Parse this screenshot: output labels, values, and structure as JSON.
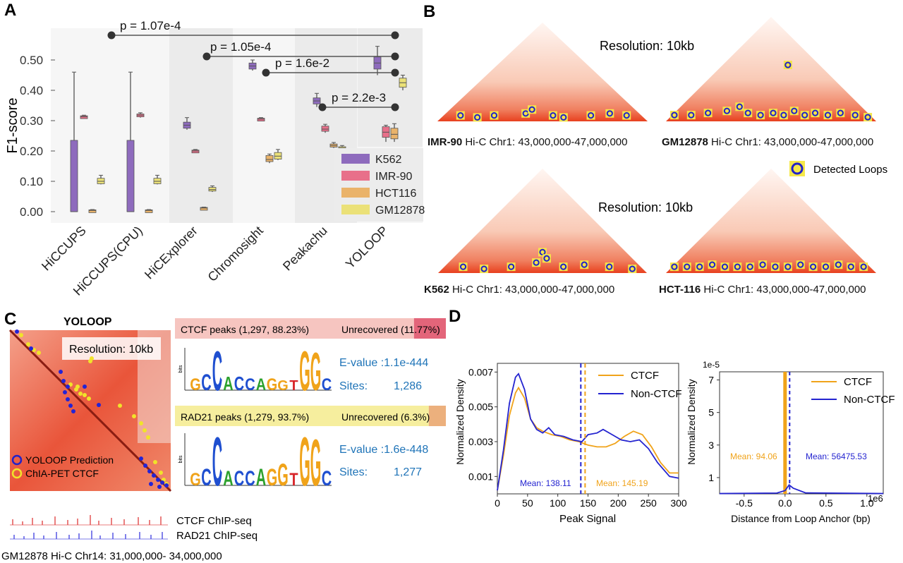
{
  "panels": {
    "a": "A",
    "b": "B",
    "c": "C",
    "d": "D"
  },
  "panel_a": {
    "ylabel": "F1-score",
    "yticks": [
      "0.00",
      "0.10",
      "0.20",
      "0.30",
      "0.40",
      "0.50"
    ],
    "tools": [
      "HiCCUPS",
      "HiCCUPS(CPU)",
      "HiCExplorer",
      "Chromosight",
      "Peakachu",
      "YOLOOP"
    ],
    "pvalues": [
      "p = 1.07e-4",
      "p = 1.05e-4",
      "p = 1.6e-2",
      "p = 2.2e-3"
    ],
    "legend": [
      "K562",
      "IMR-90",
      "HCT116",
      "GM12878"
    ],
    "colors": {
      "K562": "#8e6bbd",
      "IMR-90": "#e8708a",
      "HCT116": "#eab36a",
      "GM12878": "#ebe178"
    }
  },
  "chart_data": {
    "type": "box",
    "title": "",
    "xlabel": "",
    "ylabel": "F1-score",
    "ylim": [
      0,
      0.55
    ],
    "categories": [
      "HiCCUPS",
      "HiCCUPS(CPU)",
      "HiCExplorer",
      "Chromosight",
      "Peakachu",
      "YOLOOP"
    ],
    "series": [
      {
        "name": "K562",
        "boxes": [
          {
            "min": 0.0,
            "q1": 0.0,
            "median": 0.0,
            "q3": 0.235,
            "max": 0.46
          },
          {
            "min": 0.0,
            "q1": 0.0,
            "median": 0.0,
            "q3": 0.235,
            "max": 0.46
          },
          {
            "min": 0.27,
            "q1": 0.275,
            "median": 0.285,
            "q3": 0.295,
            "max": 0.31
          },
          {
            "min": 0.465,
            "q1": 0.47,
            "median": 0.48,
            "q3": 0.49,
            "max": 0.5
          },
          {
            "min": 0.345,
            "q1": 0.355,
            "median": 0.365,
            "q3": 0.375,
            "max": 0.39
          },
          {
            "min": 0.45,
            "q1": 0.47,
            "median": 0.49,
            "q3": 0.51,
            "max": 0.545
          }
        ]
      },
      {
        "name": "IMR-90",
        "boxes": [
          {
            "min": 0.31,
            "q1": 0.311,
            "median": 0.313,
            "q3": 0.316,
            "max": 0.318
          },
          {
            "min": 0.31,
            "q1": 0.313,
            "median": 0.318,
            "q3": 0.322,
            "max": 0.326
          },
          {
            "min": 0.197,
            "q1": 0.198,
            "median": 0.2,
            "q3": 0.203,
            "max": 0.205
          },
          {
            "min": 0.3,
            "q1": 0.302,
            "median": 0.305,
            "q3": 0.308,
            "max": 0.31
          },
          {
            "min": 0.26,
            "q1": 0.265,
            "median": 0.272,
            "q3": 0.282,
            "max": 0.288
          },
          {
            "min": 0.23,
            "q1": 0.245,
            "median": 0.262,
            "q3": 0.28,
            "max": 0.285
          }
        ]
      },
      {
        "name": "HCT116",
        "boxes": [
          {
            "min": 0.002,
            "q1": 0.003,
            "median": 0.004,
            "q3": 0.006,
            "max": 0.007
          },
          {
            "min": 0.002,
            "q1": 0.003,
            "median": 0.004,
            "q3": 0.006,
            "max": 0.007
          },
          {
            "min": 0.01,
            "q1": 0.011,
            "median": 0.012,
            "q3": 0.014,
            "max": 0.015
          },
          {
            "min": 0.16,
            "q1": 0.165,
            "median": 0.172,
            "q3": 0.185,
            "max": 0.19
          },
          {
            "min": 0.21,
            "q1": 0.213,
            "median": 0.218,
            "q3": 0.223,
            "max": 0.228
          },
          {
            "min": 0.23,
            "q1": 0.24,
            "median": 0.255,
            "q3": 0.275,
            "max": 0.29
          }
        ]
      },
      {
        "name": "GM12878",
        "boxes": [
          {
            "min": 0.09,
            "q1": 0.092,
            "median": 0.1,
            "q3": 0.11,
            "max": 0.12
          },
          {
            "min": 0.09,
            "q1": 0.092,
            "median": 0.1,
            "q3": 0.11,
            "max": 0.12
          },
          {
            "min": 0.065,
            "q1": 0.068,
            "median": 0.073,
            "q3": 0.08,
            "max": 0.085
          },
          {
            "min": 0.17,
            "q1": 0.173,
            "median": 0.183,
            "q3": 0.195,
            "max": 0.205
          },
          {
            "min": 0.202,
            "q1": 0.205,
            "median": 0.21,
            "q3": 0.214,
            "max": 0.218
          },
          {
            "min": 0.4,
            "q1": 0.41,
            "median": 0.425,
            "q3": 0.44,
            "max": 0.45
          }
        ]
      }
    ],
    "comparisons": [
      {
        "from": "HiCCUPS",
        "to": "YOLOOP",
        "label": "p = 1.07e-4"
      },
      {
        "from": "HiCExplorer",
        "to": "YOLOOP",
        "label": "p = 1.05e-4"
      },
      {
        "from": "Chromosight",
        "to": "YOLOOP",
        "label": "p = 1.6e-2"
      },
      {
        "from": "Peakachu",
        "to": "YOLOOP",
        "label": "p = 2.2e-3"
      }
    ]
  },
  "panel_b": {
    "resolution": "Resolution: 10kb",
    "legend_label": "Detected Loops",
    "coords": "Hi-C Chr1: 43,000,000-47,000,000",
    "maps": [
      {
        "cell": "IMR-90",
        "loops": [
          [
            0.11,
            0.03
          ],
          [
            0.19,
            0.02
          ],
          [
            0.27,
            0.03
          ],
          [
            0.42,
            0.04
          ],
          [
            0.45,
            0.06
          ],
          [
            0.55,
            0.03
          ],
          [
            0.6,
            0.02
          ],
          [
            0.73,
            0.03
          ],
          [
            0.82,
            0.04
          ],
          [
            0.9,
            0.03
          ]
        ]
      },
      {
        "cell": "GM12878",
        "loops": [
          [
            0.04,
            0.03
          ],
          [
            0.12,
            0.03
          ],
          [
            0.2,
            0.04
          ],
          [
            0.29,
            0.05
          ],
          [
            0.35,
            0.07
          ],
          [
            0.39,
            0.04
          ],
          [
            0.45,
            0.03
          ],
          [
            0.51,
            0.04
          ],
          [
            0.56,
            0.03
          ],
          [
            0.61,
            0.05
          ],
          [
            0.66,
            0.03
          ],
          [
            0.71,
            0.04
          ],
          [
            0.77,
            0.03
          ],
          [
            0.83,
            0.04
          ],
          [
            0.9,
            0.03
          ],
          [
            0.96,
            0.02
          ],
          [
            0.58,
            0.27
          ]
        ]
      },
      {
        "cell": "K562",
        "loops": [
          [
            0.12,
            0.03
          ],
          [
            0.22,
            0.02
          ],
          [
            0.35,
            0.03
          ],
          [
            0.47,
            0.05
          ],
          [
            0.5,
            0.1
          ],
          [
            0.52,
            0.07
          ],
          [
            0.6,
            0.03
          ],
          [
            0.7,
            0.04
          ],
          [
            0.82,
            0.03
          ],
          [
            0.93,
            0.02
          ]
        ]
      },
      {
        "cell": "HCT-116",
        "loops": [
          [
            0.04,
            0.03
          ],
          [
            0.1,
            0.03
          ],
          [
            0.16,
            0.03
          ],
          [
            0.22,
            0.04
          ],
          [
            0.28,
            0.03
          ],
          [
            0.34,
            0.03
          ],
          [
            0.4,
            0.03
          ],
          [
            0.46,
            0.04
          ],
          [
            0.52,
            0.03
          ],
          [
            0.58,
            0.03
          ],
          [
            0.64,
            0.04
          ],
          [
            0.7,
            0.03
          ],
          [
            0.76,
            0.03
          ],
          [
            0.82,
            0.04
          ],
          [
            0.88,
            0.03
          ],
          [
            0.94,
            0.03
          ]
        ]
      }
    ]
  },
  "panel_c": {
    "title": "YOLOOP",
    "resolution": "Resolution: 10kb",
    "legend": [
      "YOLOOP Prediction",
      "ChIA-PET CTCF"
    ],
    "tracks": [
      "CTCF  ChIP-seq",
      "RAD21 ChIP-seq"
    ],
    "region": "GM12878 Hi-C Chr14: 31,000,000- 34,000,000",
    "bars": [
      {
        "label": "CTCF peaks (1,297, 88.23%)",
        "unrec": "Unrecovered (11.77%)",
        "frac": 0.8823,
        "c1": "#f6c5c0",
        "c2": "#e3657a"
      },
      {
        "label": "RAD21 peaks (1,279, 93.7%)",
        "unrec": "Unrecovered (6.3%)",
        "frac": 0.937,
        "c1": "#f6ee9e",
        "c2": "#ecb07d"
      }
    ],
    "motifs": [
      {
        "evalue": "E-value :1.1e-444",
        "sites_label": "Sites:",
        "sites": "1,286"
      },
      {
        "evalue": "E-value :1.6e-448",
        "sites_label": "Sites:",
        "sites": "1,277"
      }
    ],
    "bits": "bits"
  },
  "panel_d": {
    "left": {
      "ylabel": "Normalized Density",
      "xlabel": "Peak Signal",
      "xticks": [
        "0",
        "50",
        "100",
        "150",
        "200",
        "250",
        "300"
      ],
      "yticks": [
        "0.001",
        "0.003",
        "0.005",
        "0.007"
      ],
      "legend": [
        "CTCF",
        "Non-CTCF"
      ],
      "mean_ctcf": "Mean: 145.19",
      "mean_non": "Mean: 138.11",
      "ctcf_mean_value": 145.19,
      "non_mean_value": 138.11,
      "ctcf_curve": [
        [
          0,
          0.0002
        ],
        [
          10,
          0.0022
        ],
        [
          20,
          0.0045
        ],
        [
          30,
          0.0058
        ],
        [
          35,
          0.0061
        ],
        [
          45,
          0.0055
        ],
        [
          55,
          0.0043
        ],
        [
          65,
          0.0038
        ],
        [
          75,
          0.0036
        ],
        [
          90,
          0.0034
        ],
        [
          105,
          0.0033
        ],
        [
          120,
          0.0031
        ],
        [
          135,
          0.003
        ],
        [
          150,
          0.0028
        ],
        [
          165,
          0.0027
        ],
        [
          180,
          0.0027
        ],
        [
          195,
          0.0029
        ],
        [
          210,
          0.0033
        ],
        [
          225,
          0.0036
        ],
        [
          240,
          0.0034
        ],
        [
          255,
          0.0027
        ],
        [
          270,
          0.0018
        ],
        [
          285,
          0.0012
        ],
        [
          300,
          0.0012
        ]
      ],
      "non_curve": [
        [
          0,
          0.0002
        ],
        [
          10,
          0.0025
        ],
        [
          20,
          0.0052
        ],
        [
          30,
          0.0067
        ],
        [
          35,
          0.0069
        ],
        [
          45,
          0.006
        ],
        [
          55,
          0.0043
        ],
        [
          65,
          0.0037
        ],
        [
          75,
          0.0035
        ],
        [
          85,
          0.0038
        ],
        [
          95,
          0.0034
        ],
        [
          110,
          0.0033
        ],
        [
          125,
          0.0031
        ],
        [
          140,
          0.003
        ],
        [
          150,
          0.0034
        ],
        [
          165,
          0.0035
        ],
        [
          175,
          0.0037
        ],
        [
          190,
          0.0034
        ],
        [
          205,
          0.0031
        ],
        [
          220,
          0.003
        ],
        [
          235,
          0.0031
        ],
        [
          250,
          0.0026
        ],
        [
          265,
          0.0018
        ],
        [
          285,
          0.001
        ],
        [
          300,
          0.0009
        ]
      ]
    },
    "right": {
      "ylabel": "Normalized Density",
      "xlabel": "Distance from Loop Anchor (bp)",
      "xticks": [
        "-0.5",
        "0.0",
        "0.5",
        "1.0"
      ],
      "yticks": [
        "1",
        "3",
        "5",
        "7"
      ],
      "scale_y": "1e-5",
      "scale_x": "1e6",
      "legend": [
        "CTCF",
        "Non-CTCF"
      ],
      "mean_ctcf": "Mean: 94.06",
      "mean_non": "Mean: 56475.53"
    }
  }
}
